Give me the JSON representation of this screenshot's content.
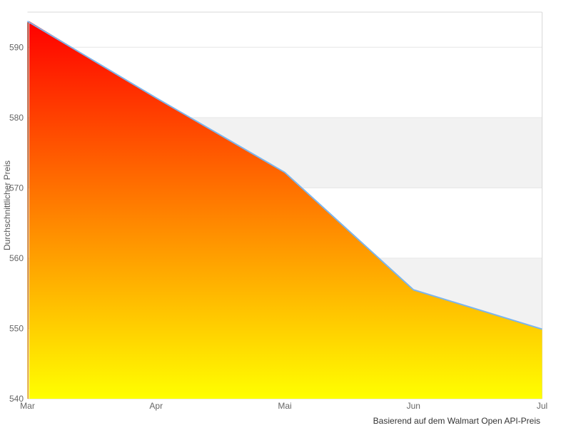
{
  "chart_data": {
    "type": "area",
    "title": "",
    "categories": [
      "Mar",
      "Apr",
      "Mai",
      "Jun",
      "Jul"
    ],
    "series": [
      {
        "name": "Durchschnittlicher Preis",
        "values": [
          593.7,
          582.8,
          572.2,
          555.5,
          549.9
        ]
      }
    ],
    "xlabel": "",
    "ylabel": "Durchschnittlicher Preis",
    "caption": "Basierend auf dem Walmart Open API-Preis",
    "ylim": [
      540,
      595
    ],
    "yticks": [
      540,
      550,
      560,
      570,
      580,
      590
    ],
    "grid": true,
    "legend_position": "none",
    "alternating_gray_bands": [
      [
        570,
        580
      ],
      [
        550,
        560
      ]
    ],
    "colors": {
      "line": "#7cb5ec",
      "area_gradient_top": "#ff0000",
      "area_gradient_bottom": "#ffff00",
      "left_edge_top": "#991000",
      "left_edge_bottom": "#dd9900",
      "band": "#f2f2f2",
      "gridline": "#e6e6e6",
      "plot_border": "#d8d8d8",
      "tick_label": "#666666",
      "axis_title": "#555555",
      "caption": "#333333",
      "background": "#ffffff"
    }
  }
}
